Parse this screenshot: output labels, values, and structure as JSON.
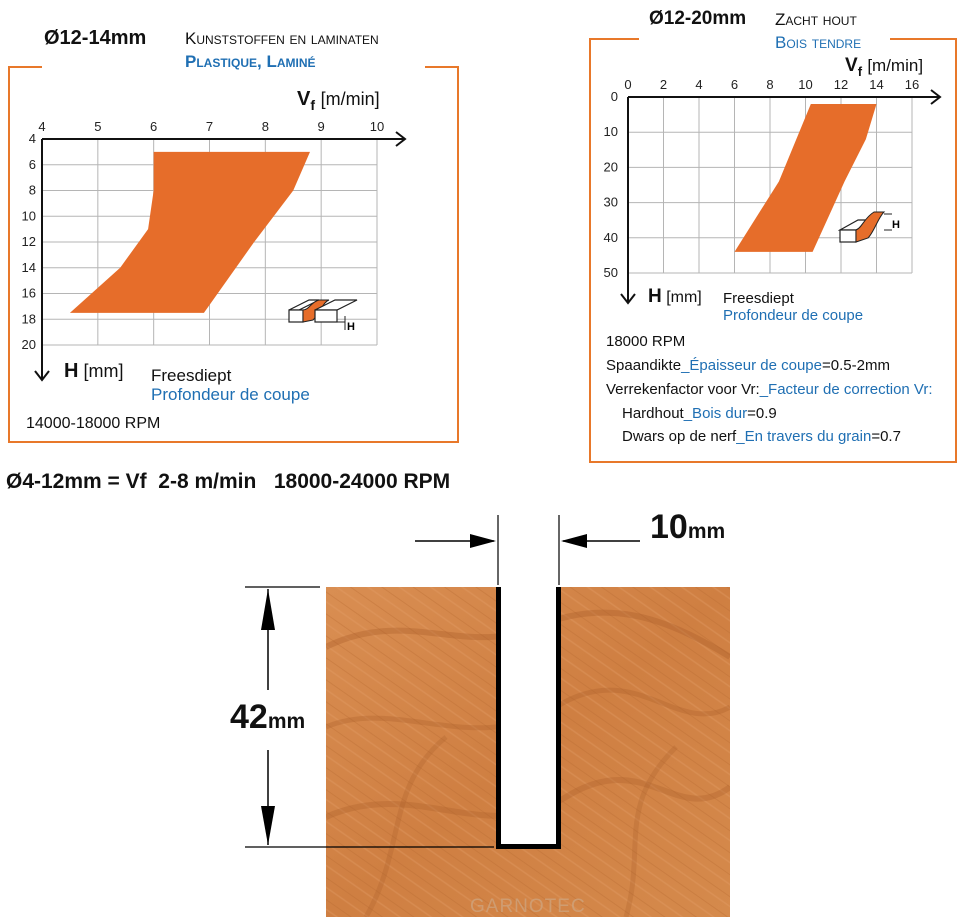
{
  "colors": {
    "orange": "#e8782a",
    "fill": "#e66d2a",
    "blue": "#1f6fb3",
    "grid": "#b5b5b5"
  },
  "left_panel": {
    "diameter": "Ø12-14mm",
    "material_nl": "Kunststoffen en laminaten",
    "material_fr": "Plastique, Laminé",
    "vf_symbol": "V",
    "vf_sub": "f",
    "vf_unit": "[m/min]",
    "h_symbol": "H",
    "h_unit": "[mm]",
    "h_label_nl": "Freesdiept",
    "h_label_fr": "Profondeur de coupe",
    "rpm": "14000-18000 RPM",
    "profile_label": "H"
  },
  "right_panel": {
    "diameter": "Ø12-20mm",
    "material_nl": "Zacht hout",
    "material_fr": "Bois tendre",
    "vf_symbol": "V",
    "vf_sub": "f",
    "vf_unit": "[m/min]",
    "h_symbol": "H",
    "h_unit": "[mm]",
    "h_label_nl": "Freesdiept",
    "h_label_fr": "Profondeur de coupe",
    "rpm": "18000 RPM",
    "line1_a": "Spaandikte",
    "line1_b": "_Épaisseur de coupe",
    "line1_c": "=0.5-2mm",
    "line2_a": "Verrekenfactor voor Vr:",
    "line2_b": "_Facteur de correction Vr:",
    "line3_a": "Hardhout",
    "line3_b": "_Bois dur",
    "line3_c": "=0.9",
    "line4_a": "Dwars op de nerf",
    "line4_b": "_En travers du grain",
    "line4_c": "=0.7",
    "profile_label": "H"
  },
  "spec_line": "Ø4-12mm = Vf  2-8 m/min   18000-24000 RPM",
  "dimension": {
    "width_value": "10",
    "width_unit": "mm",
    "depth_value": "42",
    "depth_unit": "mm"
  },
  "watermark": "GARNOTEC",
  "chart_data": [
    {
      "type": "area",
      "title": "Kunststoffen en laminaten",
      "xlabel": "Vf [m/min]",
      "ylabel": "H [mm]",
      "xlim": [
        4,
        10
      ],
      "ylim": [
        20,
        4
      ],
      "xticks": [
        "4",
        "5",
        "6",
        "7",
        "8",
        "9",
        "10"
      ],
      "yticks": [
        "4",
        "6",
        "8",
        "10",
        "12",
        "14",
        "16",
        "18",
        "20"
      ],
      "series": [
        {
          "values": [
            [
              6,
              5
            ],
            [
              8.8,
              5
            ],
            [
              8.5,
              8
            ],
            [
              7.8,
              12
            ],
            [
              6.9,
              17.5
            ],
            [
              4.5,
              17.5
            ],
            [
              5.4,
              14
            ],
            [
              5.9,
              11
            ],
            [
              6,
              8
            ]
          ]
        }
      ],
      "grid": true
    },
    {
      "type": "area",
      "title": "Zacht hout",
      "xlabel": "Vf [m/min]",
      "ylabel": "H [mm]",
      "xlim": [
        0,
        16
      ],
      "ylim": [
        50,
        0
      ],
      "xticks": [
        "0",
        "2",
        "4",
        "6",
        "8",
        "10",
        "12",
        "14",
        "16"
      ],
      "yticks": [
        "0",
        "10",
        "20",
        "30",
        "40",
        "50"
      ],
      "series": [
        {
          "values": [
            [
              10.3,
              2
            ],
            [
              14,
              2
            ],
            [
              13.4,
              12
            ],
            [
              12.2,
              24
            ],
            [
              10.4,
              44
            ],
            [
              6,
              44
            ],
            [
              8.5,
              24
            ]
          ]
        }
      ],
      "grid": true
    }
  ]
}
